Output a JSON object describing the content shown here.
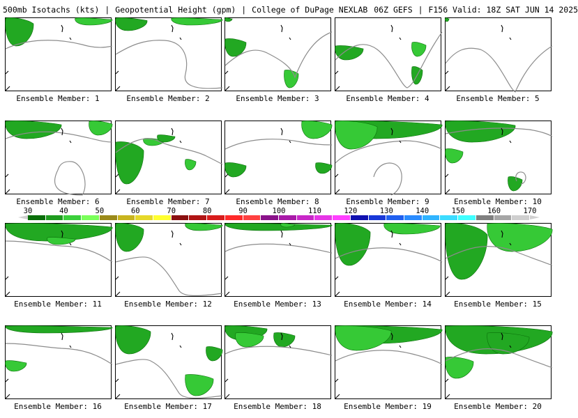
{
  "title": {
    "product": "500mb Isotachs (kts)",
    "field": "Geopotential Height (gpm)",
    "source": "College of DuPage NEXLAB",
    "run": "06Z GEFS",
    "forecast": "F156 Valid: 18Z SAT JUN 14 2025"
  },
  "colorbar": {
    "ticks": [
      "30",
      "40",
      "50",
      "60",
      "70",
      "80",
      "90",
      "100",
      "110",
      "120",
      "130",
      "140",
      "150",
      "160",
      "170"
    ],
    "colors": [
      "#0a6e0a",
      "#1f9c1f",
      "#3bcf3b",
      "#7aff5a",
      "#9b8a1a",
      "#c8b41e",
      "#e6d82a",
      "#ffff30",
      "#8a1010",
      "#b01414",
      "#d81c1c",
      "#ff2a2a",
      "#ff4040",
      "#8a128a",
      "#a81aa8",
      "#c828c8",
      "#e636e6",
      "#ff40ff",
      "#1010b0",
      "#1838d8",
      "#2060f0",
      "#2a8cff",
      "#30b4ff",
      "#3cdcff",
      "#40ffff",
      "#808080",
      "#a6a6a6",
      "#cfcfcf"
    ]
  },
  "panels": [
    {
      "label": "Ensemble Member: 1"
    },
    {
      "label": "Ensemble Member: 2"
    },
    {
      "label": "Ensemble Member: 3"
    },
    {
      "label": "Ensemble Member: 4"
    },
    {
      "label": "Ensemble Member: 5"
    },
    {
      "label": "Ensemble Member: 6"
    },
    {
      "label": "Ensemble Member: 7"
    },
    {
      "label": "Ensemble Member: 8"
    },
    {
      "label": "Ensemble Member: 9"
    },
    {
      "label": "Ensemble Member: 10"
    },
    {
      "label": "Ensemble Member: 11"
    },
    {
      "label": "Ensemble Member: 12"
    },
    {
      "label": "Ensemble Member: 13"
    },
    {
      "label": "Ensemble Member: 14"
    },
    {
      "label": "Ensemble Member: 15"
    },
    {
      "label": "Ensemble Member: 16"
    },
    {
      "label": "Ensemble Member: 17"
    },
    {
      "label": "Ensemble Member: 18"
    },
    {
      "label": "Ensemble Member: 19"
    },
    {
      "label": "Ensemble Member: 20"
    }
  ]
}
